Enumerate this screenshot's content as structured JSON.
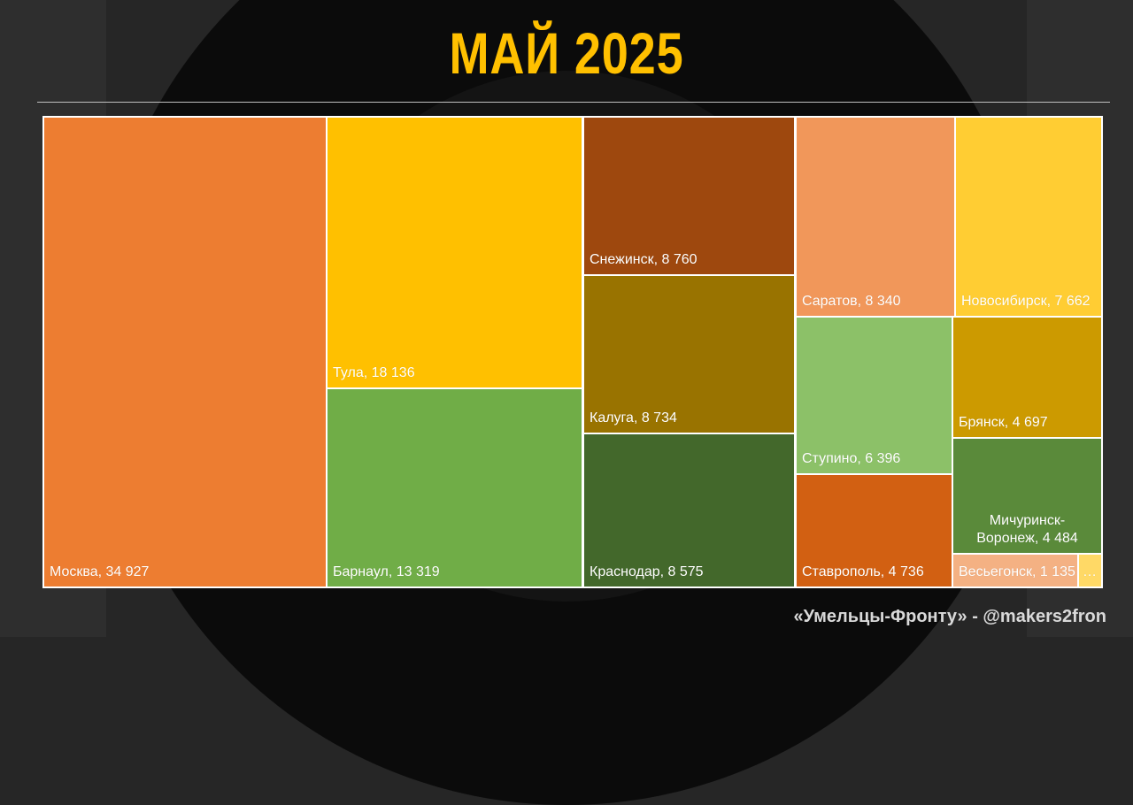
{
  "title": "МАЙ 2025",
  "footer": "«Умельцы-Фронту» - @makers2fron",
  "chart_data": {
    "type": "treemap",
    "title": "МАЙ 2025",
    "items": [
      {
        "name": "Москва",
        "value": 34927,
        "label": "Москва, 34 927",
        "color": "#ED7D31"
      },
      {
        "name": "Тула",
        "value": 18136,
        "label": "Тула, 18 136",
        "color": "#FFC000"
      },
      {
        "name": "Барнаул",
        "value": 13319,
        "label": "Барнаул, 13 319",
        "color": "#70AD47"
      },
      {
        "name": "Снежинск",
        "value": 8760,
        "label": "Снежинск, 8 760",
        "color": "#9E480E"
      },
      {
        "name": "Калуга",
        "value": 8734,
        "label": "Калуга, 8 734",
        "color": "#997300"
      },
      {
        "name": "Краснодар",
        "value": 8575,
        "label": "Краснодар, 8 575",
        "color": "#43682B"
      },
      {
        "name": "Саратов",
        "value": 8340,
        "label": "Саратов, 8 340",
        "color": "#F1975A"
      },
      {
        "name": "Новосибирск",
        "value": 7662,
        "label": "Новосибирск, 7 662",
        "color": "#FFCD33"
      },
      {
        "name": "Ступино",
        "value": 6396,
        "label": "Ступино, 6 396",
        "color": "#8CC168"
      },
      {
        "name": "Ставрополь",
        "value": 4736,
        "label": "Ставрополь, 4 736",
        "color": "#D26012"
      },
      {
        "name": "Брянск",
        "value": 4697,
        "label": "Брянск, 4 697",
        "color": "#CC9A00"
      },
      {
        "name": "Мичуринск-Воронеж",
        "value": 4484,
        "label": "Мичуринск-Воронеж, 4 484",
        "color": "#5A8A3A"
      },
      {
        "name": "Весьегонск",
        "value": 1135,
        "label": "Весьегонск, 1 135",
        "color": "#F4B183"
      },
      {
        "name": "…",
        "value": null,
        "label": "…",
        "color": "#FFD966"
      }
    ]
  }
}
